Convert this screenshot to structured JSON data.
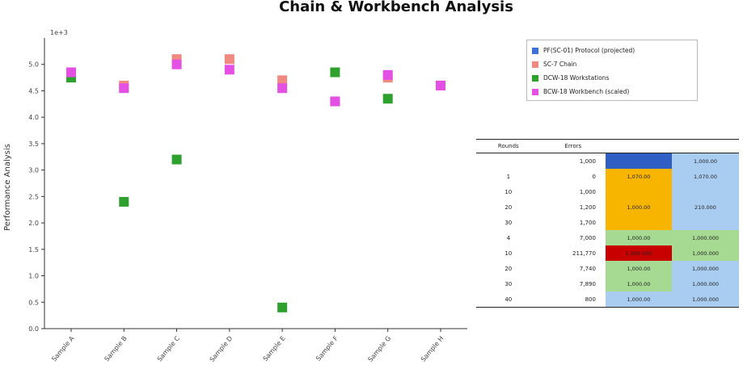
{
  "chart_data": {
    "type": "scatter",
    "title": "Chain & Workbench Analysis",
    "xlabel": "",
    "ylabel": "Performance Analysis",
    "y_multiplier": "1e+3",
    "ylim": [
      0,
      5.5
    ],
    "yticks": [
      0,
      0.5,
      1,
      1.5,
      2,
      2.5,
      3,
      3.5,
      4,
      4.5,
      5
    ],
    "ytick_labels": [
      "0.0",
      "0.5",
      "1.0",
      "1.5",
      "2.0",
      "2.5",
      "3.0",
      "3.5",
      "4.0",
      "4.5",
      "5.0"
    ],
    "categories": [
      "Sample A",
      "Sample B",
      "Sample C",
      "Sample D",
      "Sample E",
      "Sample F",
      "Sample G",
      "Sample H"
    ],
    "series": [
      {
        "name": "PF(SC-01) Protocol (projected)",
        "color": "#3f6fd8",
        "values": [
          null,
          null,
          null,
          null,
          null,
          null,
          null,
          null
        ]
      },
      {
        "name": "SC-7 Chain",
        "color": "#f08a80",
        "values": [
          4.85,
          4.6,
          5.1,
          5.1,
          4.7,
          4.3,
          4.75,
          4.6
        ]
      },
      {
        "name": "DCW-18 Workstations",
        "color": "#2ea02e",
        "values": [
          4.75,
          2.4,
          3.2,
          null,
          0.4,
          4.85,
          4.35,
          null
        ]
      },
      {
        "name": "BCW-18 Workbench (scaled)",
        "color": "#e44fe4",
        "values": [
          4.85,
          4.55,
          5.0,
          4.9,
          4.55,
          4.3,
          4.8,
          4.6
        ]
      }
    ],
    "grid": false,
    "legend_position": "top-right"
  },
  "table": {
    "headers": [
      "Rounds",
      "Errors",
      "",
      ""
    ],
    "rows": [
      {
        "rounds": "",
        "errors": "1,000",
        "c1": "",
        "c2": "1,000.00",
        "c1_color": "#2f5fc4",
        "c2_color": "#a9cdf0"
      },
      {
        "rounds": "1",
        "errors": "0",
        "c1": "1,070.00",
        "c2": "1,070.00",
        "c1_color": "#f7b500",
        "c2_color": "#a9cdf0"
      },
      {
        "rounds": "10",
        "errors": "1,000",
        "c1": "",
        "c2": "",
        "c1_color": "#f7b500",
        "c2_color": "#a9cdf0"
      },
      {
        "rounds": "20",
        "errors": "1,200",
        "c1": "1,000.00",
        "c2": "210.000",
        "c1_color": "#f7b500",
        "c2_color": "#a9cdf0"
      },
      {
        "rounds": "30",
        "errors": "1,700",
        "c1": "",
        "c2": "",
        "c1_color": "#f7b500",
        "c2_color": "#a9cdf0"
      },
      {
        "rounds": "4",
        "errors": "7,000",
        "c1": "1,000.00",
        "c2": "1,000.000",
        "c1_color": "#a6d991",
        "c2_color": "#a6d991"
      },
      {
        "rounds": "10",
        "errors": "211,770",
        "c1": "1,000.000",
        "c2": "1,000.000",
        "c1_color": "#c80000",
        "c2_color": "#a6d991"
      },
      {
        "rounds": "20",
        "errors": "7,740",
        "c1": "1,000.00",
        "c2": "1,000.000",
        "c1_color": "#a6d991",
        "c2_color": "#a9cdf0"
      },
      {
        "rounds": "30",
        "errors": "7,890",
        "c1": "1,000.00",
        "c2": "1,000.000",
        "c1_color": "#a6d991",
        "c2_color": "#a9cdf0"
      },
      {
        "rounds": "40",
        "errors": "800",
        "c1": "1,000.00",
        "c2": "1,000.000",
        "c1_color": "#a9cdf0",
        "c2_color": "#a9cdf0"
      }
    ]
  }
}
